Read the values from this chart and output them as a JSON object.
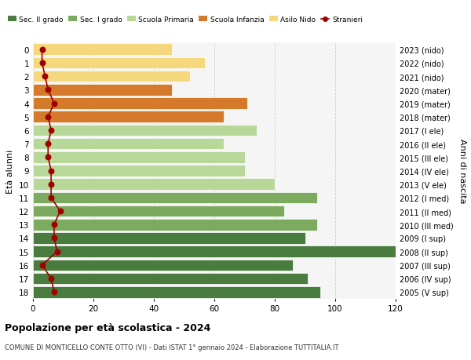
{
  "ages": [
    18,
    17,
    16,
    15,
    14,
    13,
    12,
    11,
    10,
    9,
    8,
    7,
    6,
    5,
    4,
    3,
    2,
    1,
    0
  ],
  "years": [
    "2005 (V sup)",
    "2006 (IV sup)",
    "2007 (III sup)",
    "2008 (II sup)",
    "2009 (I sup)",
    "2010 (III med)",
    "2011 (II med)",
    "2012 (I med)",
    "2013 (V ele)",
    "2014 (IV ele)",
    "2015 (III ele)",
    "2016 (II ele)",
    "2017 (I ele)",
    "2018 (mater)",
    "2019 (mater)",
    "2020 (mater)",
    "2021 (nido)",
    "2022 (nido)",
    "2023 (nido)"
  ],
  "bar_values": [
    95,
    91,
    86,
    120,
    90,
    94,
    83,
    94,
    80,
    70,
    70,
    63,
    74,
    63,
    71,
    46,
    52,
    57,
    46
  ],
  "bar_colors": [
    "#4a7c3f",
    "#4a7c3f",
    "#4a7c3f",
    "#4a7c3f",
    "#4a7c3f",
    "#7caa5e",
    "#7caa5e",
    "#7caa5e",
    "#b8d89a",
    "#b8d89a",
    "#b8d89a",
    "#b8d89a",
    "#b8d89a",
    "#d47a2a",
    "#d47a2a",
    "#d47a2a",
    "#f5d77e",
    "#f5d77e",
    "#f5d77e"
  ],
  "stranieri_values": [
    7,
    6,
    3,
    8,
    7,
    7,
    9,
    6,
    6,
    6,
    5,
    5,
    6,
    5,
    7,
    5,
    4,
    3,
    3
  ],
  "stranieri_color": "#a00000",
  "legend_labels": [
    "Sec. II grado",
    "Sec. I grado",
    "Scuola Primaria",
    "Scuola Infanzia",
    "Asilo Nido",
    "Stranieri"
  ],
  "legend_colors": [
    "#4a7c3f",
    "#7caa5e",
    "#b8d89a",
    "#d47a2a",
    "#f5d77e",
    "#a00000"
  ],
  "title": "Popolazione per età scolastica - 2024",
  "subtitle": "COMUNE DI MONTICELLO CONTE OTTO (VI) - Dati ISTAT 1° gennaio 2024 - Elaborazione TUTTITALIA.IT",
  "ylabel_left": "Età alunni",
  "ylabel_right": "Anni di nascita",
  "xlim": [
    0,
    120
  ],
  "xticks": [
    0,
    20,
    40,
    60,
    80,
    100,
    120
  ],
  "background_color": "#ffffff",
  "plot_bg_color": "#f5f5f5"
}
